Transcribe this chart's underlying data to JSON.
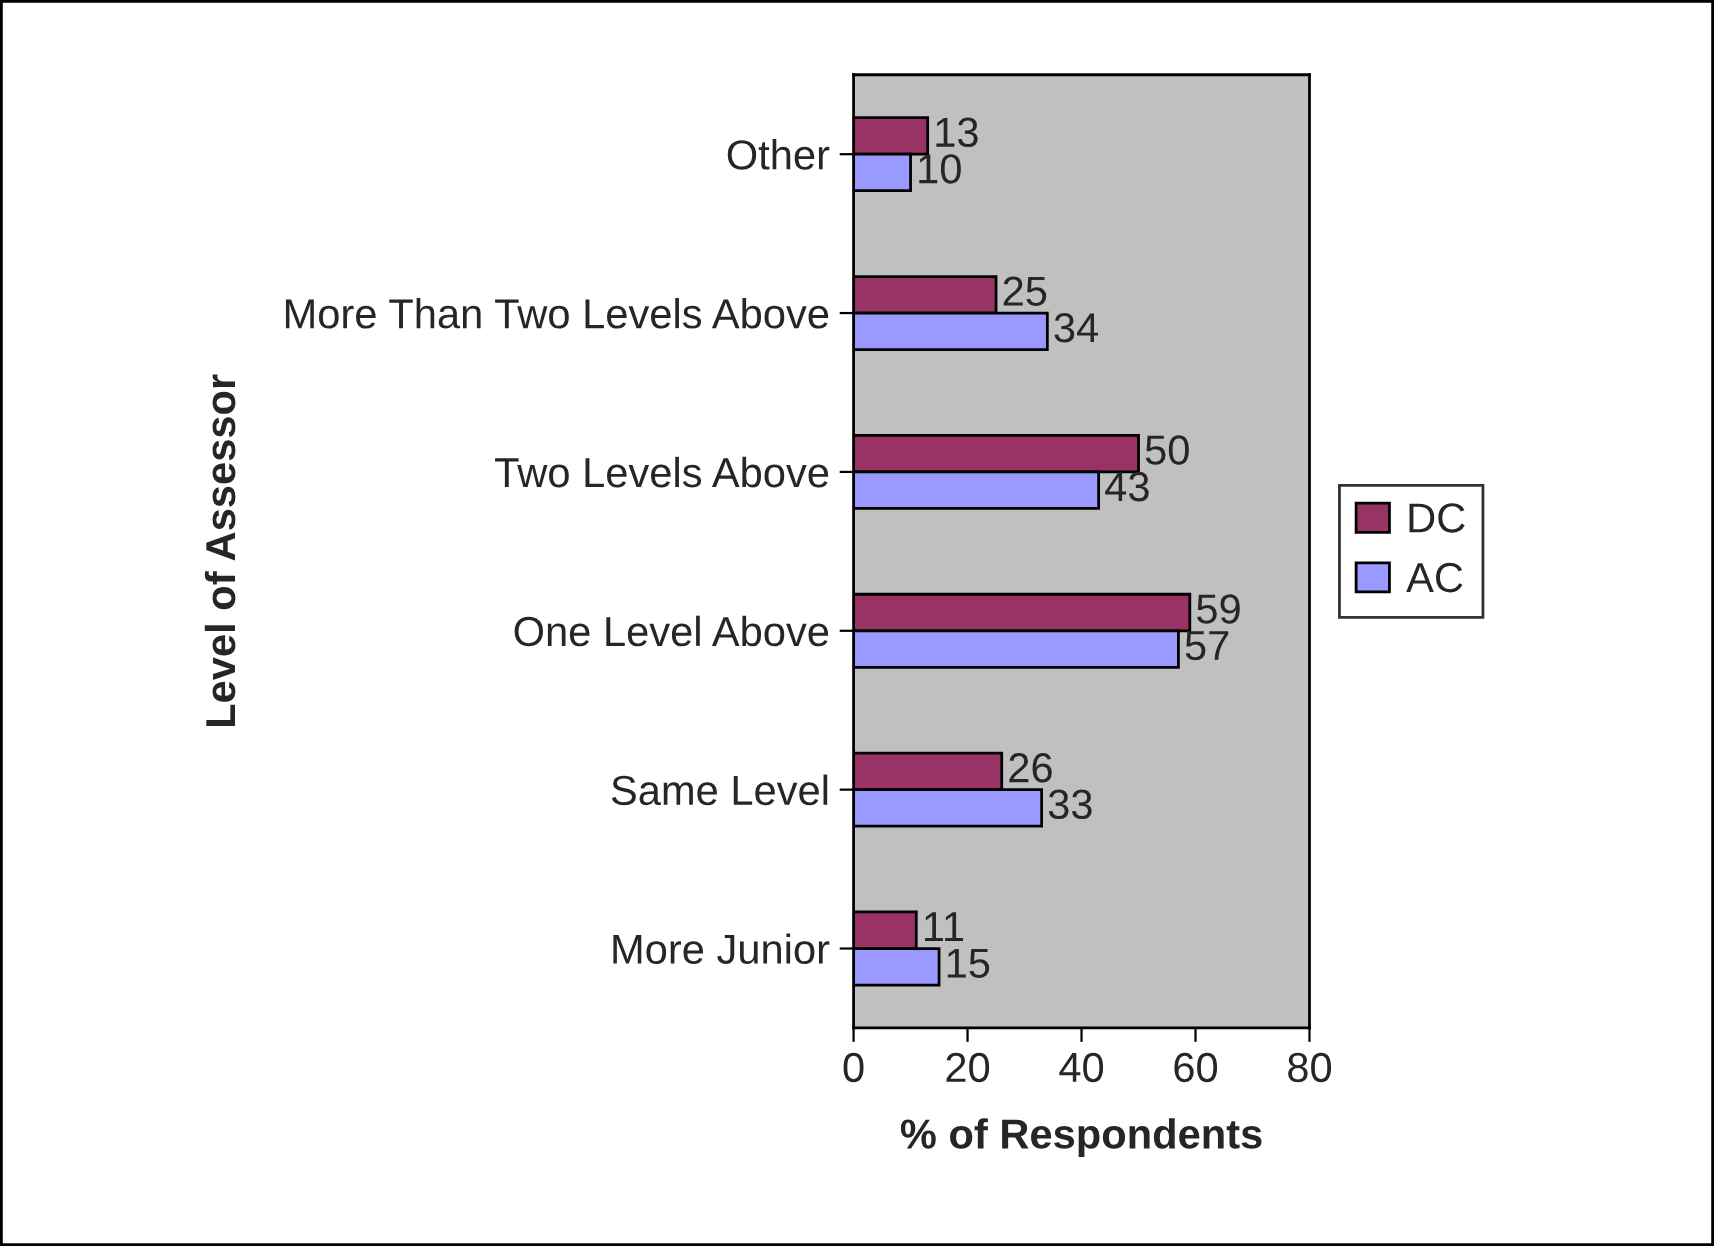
{
  "chart_data": {
    "type": "bar",
    "orientation": "horizontal",
    "xlabel": "% of Respondents",
    "ylabel": "Level of Assessor",
    "categories": [
      "Other",
      "More Than Two Levels Above",
      "Two Levels Above",
      "One Level Above",
      "Same Level",
      "More Junior"
    ],
    "series": [
      {
        "name": "DC",
        "color": "#993366",
        "values": [
          13,
          25,
          50,
          59,
          26,
          11
        ]
      },
      {
        "name": "AC",
        "color": "#9999ff",
        "values": [
          10,
          34,
          43,
          57,
          33,
          15
        ]
      }
    ],
    "xlim": [
      0,
      80
    ],
    "xticks": [
      0,
      20,
      40,
      60,
      80
    ],
    "data_labels": true,
    "grid": false,
    "legend": "right"
  }
}
